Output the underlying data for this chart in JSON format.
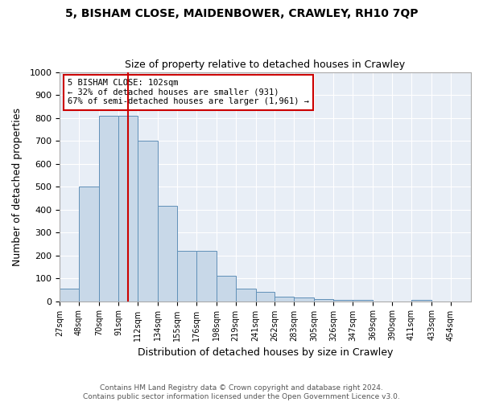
{
  "title_line1": "5, BISHAM CLOSE, MAIDENBOWER, CRAWLEY, RH10 7QP",
  "title_line2": "Size of property relative to detached houses in Crawley",
  "xlabel": "Distribution of detached houses by size in Crawley",
  "ylabel": "Number of detached properties",
  "footer_line1": "Contains HM Land Registry data © Crown copyright and database right 2024.",
  "footer_line2": "Contains public sector information licensed under the Open Government Licence v3.0.",
  "annotation_line1": "5 BISHAM CLOSE: 102sqm",
  "annotation_line2": "← 32% of detached houses are smaller (931)",
  "annotation_line3": "67% of semi-detached houses are larger (1,961) →",
  "property_size": 102,
  "bar_edges": [
    27,
    48,
    70,
    91,
    112,
    134,
    155,
    176,
    198,
    219,
    241,
    262,
    283,
    305,
    326,
    347,
    369,
    390,
    411,
    433,
    454,
    476
  ],
  "bar_heights": [
    55,
    500,
    810,
    810,
    700,
    415,
    220,
    220,
    110,
    55,
    40,
    20,
    15,
    10,
    5,
    5,
    0,
    0,
    5,
    0,
    0
  ],
  "tick_labels": [
    "27sqm",
    "48sqm",
    "70sqm",
    "91sqm",
    "112sqm",
    "134sqm",
    "155sqm",
    "176sqm",
    "198sqm",
    "219sqm",
    "241sqm",
    "262sqm",
    "283sqm",
    "305sqm",
    "326sqm",
    "347sqm",
    "369sqm",
    "390sqm",
    "411sqm",
    "433sqm",
    "454sqm"
  ],
  "bar_color": "#c8d8e8",
  "bar_edge_color": "#6090b8",
  "vline_color": "#cc0000",
  "annotation_box_color": "#cc0000",
  "background_color": "#e8eef6",
  "ylim": [
    0,
    1000
  ],
  "yticks": [
    0,
    100,
    200,
    300,
    400,
    500,
    600,
    700,
    800,
    900,
    1000
  ]
}
